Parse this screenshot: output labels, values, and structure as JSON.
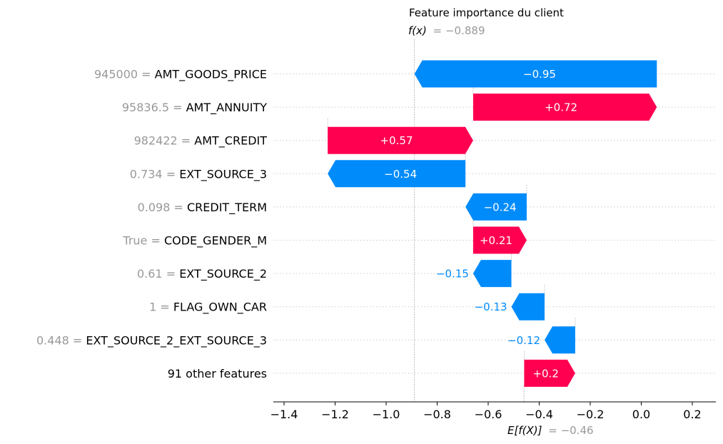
{
  "chart_data": {
    "type": "waterfall",
    "title": "Feature importance du client",
    "fx_label": "f(x)",
    "fx_value": "= −0.889",
    "fx": -0.889,
    "ex_label": "E[f(X)]",
    "ex_value": "= −0.46",
    "ex": -0.46,
    "xlim": [
      -1.55,
      0.28
    ],
    "ticks": [
      {
        "value": -1.4,
        "label": "−1.4"
      },
      {
        "value": -1.2,
        "label": "−1.2"
      },
      {
        "value": -1.0,
        "label": "−1.0"
      },
      {
        "value": -0.8,
        "label": "−0.8"
      },
      {
        "value": -0.6,
        "label": "−0.6"
      },
      {
        "value": -0.4,
        "label": "−0.4"
      },
      {
        "value": -0.2,
        "label": "−0.2"
      },
      {
        "value": 0.0,
        "label": "0.0"
      },
      {
        "value": 0.2,
        "label": "0.2"
      }
    ],
    "features": [
      {
        "value": "945000",
        "name": "AMT_GOODS_PRICE",
        "shap": -0.95,
        "label": "−0.95",
        "start": 0.061,
        "end": -0.889
      },
      {
        "value": "95836.5",
        "name": "AMT_ANNUITY",
        "shap": 0.72,
        "label": "+0.72",
        "start": -0.659,
        "end": 0.061
      },
      {
        "value": "982422",
        "name": "AMT_CREDIT",
        "shap": 0.57,
        "label": "+0.57",
        "start": -1.229,
        "end": -0.659
      },
      {
        "value": "0.734",
        "name": "EXT_SOURCE_3",
        "shap": -0.54,
        "label": "−0.54",
        "start": -0.689,
        "end": -1.229
      },
      {
        "value": "0.098",
        "name": "CREDIT_TERM",
        "shap": -0.24,
        "label": "−0.24",
        "start": -0.449,
        "end": -0.689
      },
      {
        "value": "True",
        "name": "CODE_GENDER_M",
        "shap": 0.21,
        "label": "+0.21",
        "start": -0.659,
        "end": -0.449
      },
      {
        "value": "0.61",
        "name": "EXT_SOURCE_2",
        "shap": -0.15,
        "label": "−0.15",
        "start": -0.509,
        "end": -0.659
      },
      {
        "value": "1",
        "name": "FLAG_OWN_CAR",
        "shap": -0.13,
        "label": "−0.13",
        "start": -0.379,
        "end": -0.509
      },
      {
        "value": "0.448",
        "name": "EXT_SOURCE_2_EXT_SOURCE_3",
        "shap": -0.12,
        "label": "−0.12",
        "start": -0.259,
        "end": -0.379
      },
      {
        "value": "",
        "name": "91 other features",
        "shap": 0.2,
        "label": "+0.2",
        "start": -0.459,
        "end": -0.259
      }
    ],
    "colors": {
      "positive": "#ff0051",
      "negative": "#008bfb",
      "grey_text": "#999999",
      "grid": "#cccccc"
    }
  }
}
